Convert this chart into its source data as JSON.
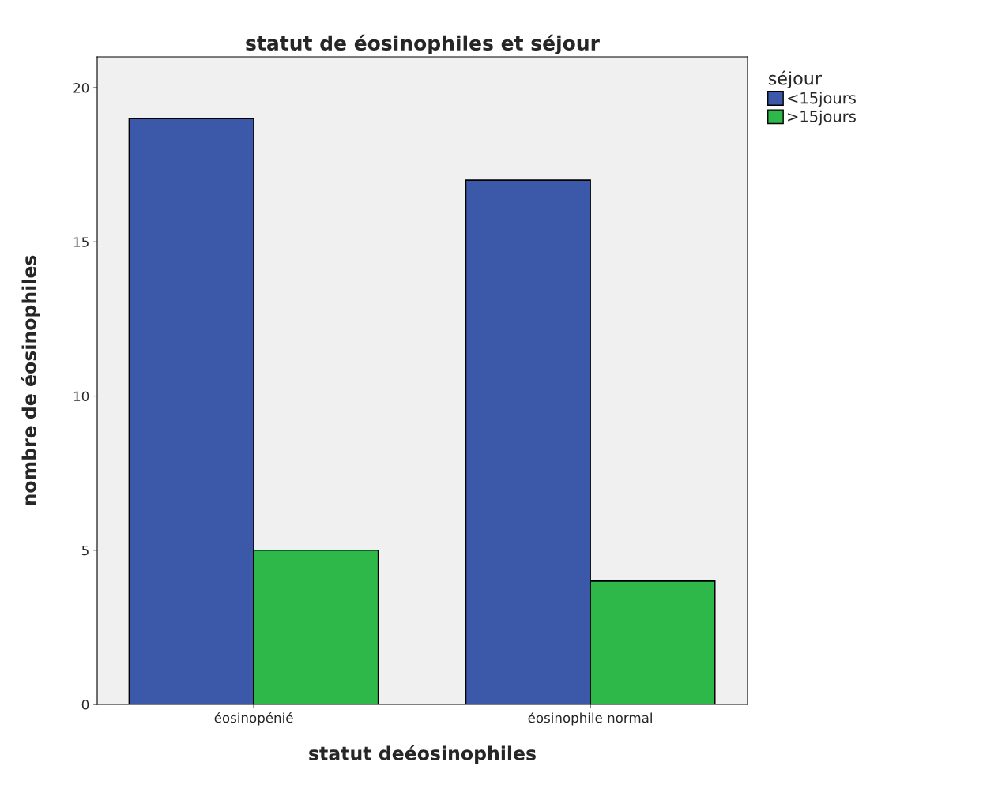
{
  "chart_data": {
    "type": "bar",
    "title": "statut de éosinophiles et séjour",
    "xlabel": "statut deéosinophiles",
    "ylabel": "nombre de éosinophiles",
    "legend_title": "séjour",
    "categories": [
      "éosinopénié",
      "éosinophile normal"
    ],
    "series": [
      {
        "name": "<15jours",
        "color": "#3c58a8",
        "values": [
          19,
          17
        ]
      },
      {
        "name": ">15jours",
        "color": "#2eb84a",
        "values": [
          5,
          4
        ]
      }
    ],
    "ylim": [
      0,
      21
    ],
    "yticks": [
      0,
      5,
      10,
      15,
      20
    ],
    "grid": false,
    "legend": "top right"
  }
}
